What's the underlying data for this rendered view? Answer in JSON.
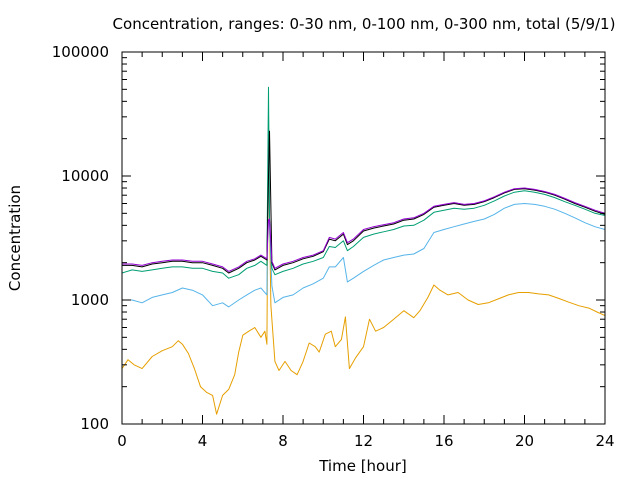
{
  "chart_data": {
    "type": "line",
    "title": "Concentration, ranges: 0-30 nm, 0-100 nm, 0-300 nm, total (5/9/1)",
    "xlabel": "Time [hour]",
    "ylabel": "Concentration",
    "xlim": [
      0,
      24
    ],
    "ylim": [
      100,
      100000
    ],
    "yscale": "log",
    "grid": false,
    "xticks": [
      0,
      4,
      8,
      12,
      16,
      20,
      24
    ],
    "xtick_labels": [
      "0",
      "4",
      "8",
      "12",
      "16",
      "20",
      "24"
    ],
    "yticks": [
      100,
      1000,
      10000,
      100000
    ],
    "ytick_labels": [
      "100",
      "1000",
      "10000",
      "100000"
    ],
    "series": [
      {
        "color": "#e69f00",
        "points": [
          [
            0,
            280
          ],
          [
            0.3,
            330
          ],
          [
            0.6,
            300
          ],
          [
            1,
            280
          ],
          [
            1.5,
            350
          ],
          [
            2,
            390
          ],
          [
            2.5,
            420
          ],
          [
            2.8,
            470
          ],
          [
            3,
            440
          ],
          [
            3.3,
            370
          ],
          [
            3.6,
            280
          ],
          [
            3.9,
            200
          ],
          [
            4.2,
            180
          ],
          [
            4.5,
            170
          ],
          [
            4.7,
            120
          ],
          [
            5,
            170
          ],
          [
            5.3,
            190
          ],
          [
            5.6,
            250
          ],
          [
            5.8,
            380
          ],
          [
            6,
            520
          ],
          [
            6.3,
            560
          ],
          [
            6.6,
            600
          ],
          [
            6.9,
            500
          ],
          [
            7.1,
            560
          ],
          [
            7.2,
            440
          ],
          [
            7.28,
            30000
          ],
          [
            7.33,
            4500
          ],
          [
            7.4,
            900
          ],
          [
            7.6,
            320
          ],
          [
            7.8,
            270
          ],
          [
            8.1,
            320
          ],
          [
            8.4,
            270
          ],
          [
            8.7,
            250
          ],
          [
            9,
            320
          ],
          [
            9.3,
            450
          ],
          [
            9.6,
            420
          ],
          [
            9.8,
            380
          ],
          [
            10.1,
            530
          ],
          [
            10.4,
            560
          ],
          [
            10.6,
            420
          ],
          [
            10.9,
            480
          ],
          [
            11.1,
            730
          ],
          [
            11.3,
            280
          ],
          [
            11.6,
            340
          ],
          [
            12,
            420
          ],
          [
            12.3,
            700
          ],
          [
            12.6,
            560
          ],
          [
            13,
            600
          ],
          [
            13.5,
            700
          ],
          [
            14,
            820
          ],
          [
            14.5,
            720
          ],
          [
            14.8,
            820
          ],
          [
            15.2,
            1050
          ],
          [
            15.5,
            1320
          ],
          [
            15.8,
            1200
          ],
          [
            16.2,
            1100
          ],
          [
            16.7,
            1150
          ],
          [
            17.2,
            1000
          ],
          [
            17.7,
            920
          ],
          [
            18.2,
            950
          ],
          [
            18.7,
            1020
          ],
          [
            19.2,
            1100
          ],
          [
            19.7,
            1150
          ],
          [
            20.2,
            1150
          ],
          [
            20.7,
            1120
          ],
          [
            21.2,
            1100
          ],
          [
            21.7,
            1030
          ],
          [
            22.2,
            960
          ],
          [
            22.7,
            900
          ],
          [
            23.2,
            860
          ],
          [
            23.6,
            800
          ],
          [
            24,
            750
          ]
        ]
      },
      {
        "color": "#56b4e9",
        "points": [
          [
            0,
            1000
          ],
          [
            0.5,
            1000
          ],
          [
            1,
            950
          ],
          [
            1.5,
            1050
          ],
          [
            2,
            1100
          ],
          [
            2.5,
            1150
          ],
          [
            3,
            1250
          ],
          [
            3.5,
            1200
          ],
          [
            4,
            1100
          ],
          [
            4.5,
            900
          ],
          [
            5,
            950
          ],
          [
            5.3,
            880
          ],
          [
            5.8,
            1000
          ],
          [
            6.2,
            1100
          ],
          [
            6.6,
            1200
          ],
          [
            6.9,
            1250
          ],
          [
            7.2,
            1100
          ],
          [
            7.28,
            32000
          ],
          [
            7.33,
            4000
          ],
          [
            7.45,
            1300
          ],
          [
            7.6,
            950
          ],
          [
            8,
            1050
          ],
          [
            8.5,
            1100
          ],
          [
            9,
            1250
          ],
          [
            9.5,
            1350
          ],
          [
            10,
            1500
          ],
          [
            10.3,
            1850
          ],
          [
            10.6,
            1850
          ],
          [
            11,
            2200
          ],
          [
            11.2,
            1400
          ],
          [
            11.5,
            1500
          ],
          [
            12,
            1700
          ],
          [
            12.5,
            1900
          ],
          [
            13,
            2100
          ],
          [
            13.5,
            2200
          ],
          [
            14,
            2300
          ],
          [
            14.5,
            2350
          ],
          [
            15,
            2600
          ],
          [
            15.5,
            3500
          ],
          [
            16,
            3700
          ],
          [
            16.5,
            3900
          ],
          [
            17,
            4100
          ],
          [
            17.5,
            4300
          ],
          [
            18,
            4500
          ],
          [
            18.5,
            4900
          ],
          [
            19,
            5500
          ],
          [
            19.5,
            5900
          ],
          [
            20,
            6000
          ],
          [
            20.5,
            5900
          ],
          [
            21,
            5700
          ],
          [
            21.5,
            5400
          ],
          [
            22,
            5000
          ],
          [
            22.5,
            4600
          ],
          [
            23,
            4200
          ],
          [
            23.5,
            3900
          ],
          [
            24,
            3700
          ]
        ]
      },
      {
        "color": "#009e73",
        "points": [
          [
            0,
            1650
          ],
          [
            0.5,
            1750
          ],
          [
            1,
            1700
          ],
          [
            1.5,
            1750
          ],
          [
            2,
            1800
          ],
          [
            2.5,
            1850
          ],
          [
            3,
            1850
          ],
          [
            3.5,
            1800
          ],
          [
            4,
            1800
          ],
          [
            4.5,
            1700
          ],
          [
            5,
            1650
          ],
          [
            5.3,
            1500
          ],
          [
            5.8,
            1600
          ],
          [
            6.2,
            1800
          ],
          [
            6.6,
            1900
          ],
          [
            6.9,
            2050
          ],
          [
            7.2,
            1900
          ],
          [
            7.28,
            52000
          ],
          [
            7.33,
            4500
          ],
          [
            7.45,
            1800
          ],
          [
            7.6,
            1600
          ],
          [
            8,
            1700
          ],
          [
            8.5,
            1800
          ],
          [
            9,
            1950
          ],
          [
            9.5,
            2050
          ],
          [
            10,
            2200
          ],
          [
            10.3,
            2700
          ],
          [
            10.6,
            2650
          ],
          [
            11,
            3000
          ],
          [
            11.2,
            2500
          ],
          [
            11.5,
            2700
          ],
          [
            12,
            3200
          ],
          [
            12.5,
            3400
          ],
          [
            13,
            3550
          ],
          [
            13.5,
            3700
          ],
          [
            14,
            3950
          ],
          [
            14.5,
            4000
          ],
          [
            15,
            4400
          ],
          [
            15.5,
            5100
          ],
          [
            16,
            5300
          ],
          [
            16.5,
            5500
          ],
          [
            17,
            5400
          ],
          [
            17.5,
            5500
          ],
          [
            18,
            5800
          ],
          [
            18.5,
            6300
          ],
          [
            19,
            6900
          ],
          [
            19.5,
            7400
          ],
          [
            20,
            7600
          ],
          [
            20.5,
            7400
          ],
          [
            21,
            7100
          ],
          [
            21.5,
            6700
          ],
          [
            22,
            6200
          ],
          [
            22.5,
            5800
          ],
          [
            23,
            5400
          ],
          [
            23.5,
            5000
          ],
          [
            24,
            4800
          ]
        ]
      },
      {
        "color": "#000000",
        "points": [
          [
            0,
            1900
          ],
          [
            0.5,
            1900
          ],
          [
            1,
            1850
          ],
          [
            1.5,
            1950
          ],
          [
            2,
            2000
          ],
          [
            2.5,
            2050
          ],
          [
            3,
            2050
          ],
          [
            3.5,
            2000
          ],
          [
            4,
            2000
          ],
          [
            4.5,
            1900
          ],
          [
            5,
            1800
          ],
          [
            5.3,
            1650
          ],
          [
            5.8,
            1800
          ],
          [
            6.2,
            2000
          ],
          [
            6.6,
            2100
          ],
          [
            6.9,
            2250
          ],
          [
            7.2,
            2100
          ],
          [
            7.28,
            10000
          ],
          [
            7.33,
            23000
          ],
          [
            7.45,
            2000
          ],
          [
            7.6,
            1750
          ],
          [
            8,
            1900
          ],
          [
            8.5,
            2000
          ],
          [
            9,
            2150
          ],
          [
            9.5,
            2250
          ],
          [
            10,
            2450
          ],
          [
            10.3,
            3100
          ],
          [
            10.6,
            3000
          ],
          [
            11,
            3400
          ],
          [
            11.2,
            2800
          ],
          [
            11.5,
            3000
          ],
          [
            12,
            3600
          ],
          [
            12.5,
            3800
          ],
          [
            13,
            3950
          ],
          [
            13.5,
            4100
          ],
          [
            14,
            4400
          ],
          [
            14.5,
            4500
          ],
          [
            15,
            4900
          ],
          [
            15.5,
            5600
          ],
          [
            16,
            5800
          ],
          [
            16.5,
            6000
          ],
          [
            17,
            5800
          ],
          [
            17.5,
            5900
          ],
          [
            18,
            6200
          ],
          [
            18.5,
            6700
          ],
          [
            19,
            7300
          ],
          [
            19.5,
            7800
          ],
          [
            20,
            7900
          ],
          [
            20.5,
            7700
          ],
          [
            21,
            7400
          ],
          [
            21.5,
            7000
          ],
          [
            22,
            6500
          ],
          [
            22.5,
            6000
          ],
          [
            23,
            5600
          ],
          [
            23.5,
            5200
          ],
          [
            24,
            4900
          ]
        ]
      },
      {
        "color": "#9400d3",
        "points": [
          [
            0,
            1950
          ],
          [
            0.5,
            1950
          ],
          [
            1,
            1900
          ],
          [
            1.5,
            2000
          ],
          [
            2,
            2050
          ],
          [
            2.5,
            2100
          ],
          [
            3,
            2100
          ],
          [
            3.5,
            2050
          ],
          [
            4,
            2050
          ],
          [
            4.5,
            1950
          ],
          [
            5,
            1850
          ],
          [
            5.3,
            1700
          ],
          [
            5.8,
            1850
          ],
          [
            6.2,
            2050
          ],
          [
            6.6,
            2150
          ],
          [
            6.9,
            2300
          ],
          [
            7.2,
            2150
          ],
          [
            7.28,
            4400
          ],
          [
            7.33,
            4500
          ],
          [
            7.45,
            2050
          ],
          [
            7.6,
            1800
          ],
          [
            8,
            1950
          ],
          [
            8.5,
            2050
          ],
          [
            9,
            2200
          ],
          [
            9.5,
            2300
          ],
          [
            10,
            2500
          ],
          [
            10.3,
            3200
          ],
          [
            10.6,
            3100
          ],
          [
            11,
            3500
          ],
          [
            11.2,
            2900
          ],
          [
            11.5,
            3100
          ],
          [
            12,
            3700
          ],
          [
            12.5,
            3900
          ],
          [
            13,
            4050
          ],
          [
            13.5,
            4200
          ],
          [
            14,
            4500
          ],
          [
            14.5,
            4600
          ],
          [
            15,
            5000
          ],
          [
            15.5,
            5700
          ],
          [
            16,
            5900
          ],
          [
            16.5,
            6100
          ],
          [
            17,
            5900
          ],
          [
            17.5,
            6000
          ],
          [
            18,
            6300
          ],
          [
            18.5,
            6800
          ],
          [
            19,
            7400
          ],
          [
            19.5,
            7900
          ],
          [
            20,
            8000
          ],
          [
            20.5,
            7800
          ],
          [
            21,
            7500
          ],
          [
            21.5,
            7100
          ],
          [
            22,
            6600
          ],
          [
            22.5,
            6100
          ],
          [
            23,
            5700
          ],
          [
            23.5,
            5300
          ],
          [
            24,
            5000
          ]
        ]
      }
    ]
  }
}
